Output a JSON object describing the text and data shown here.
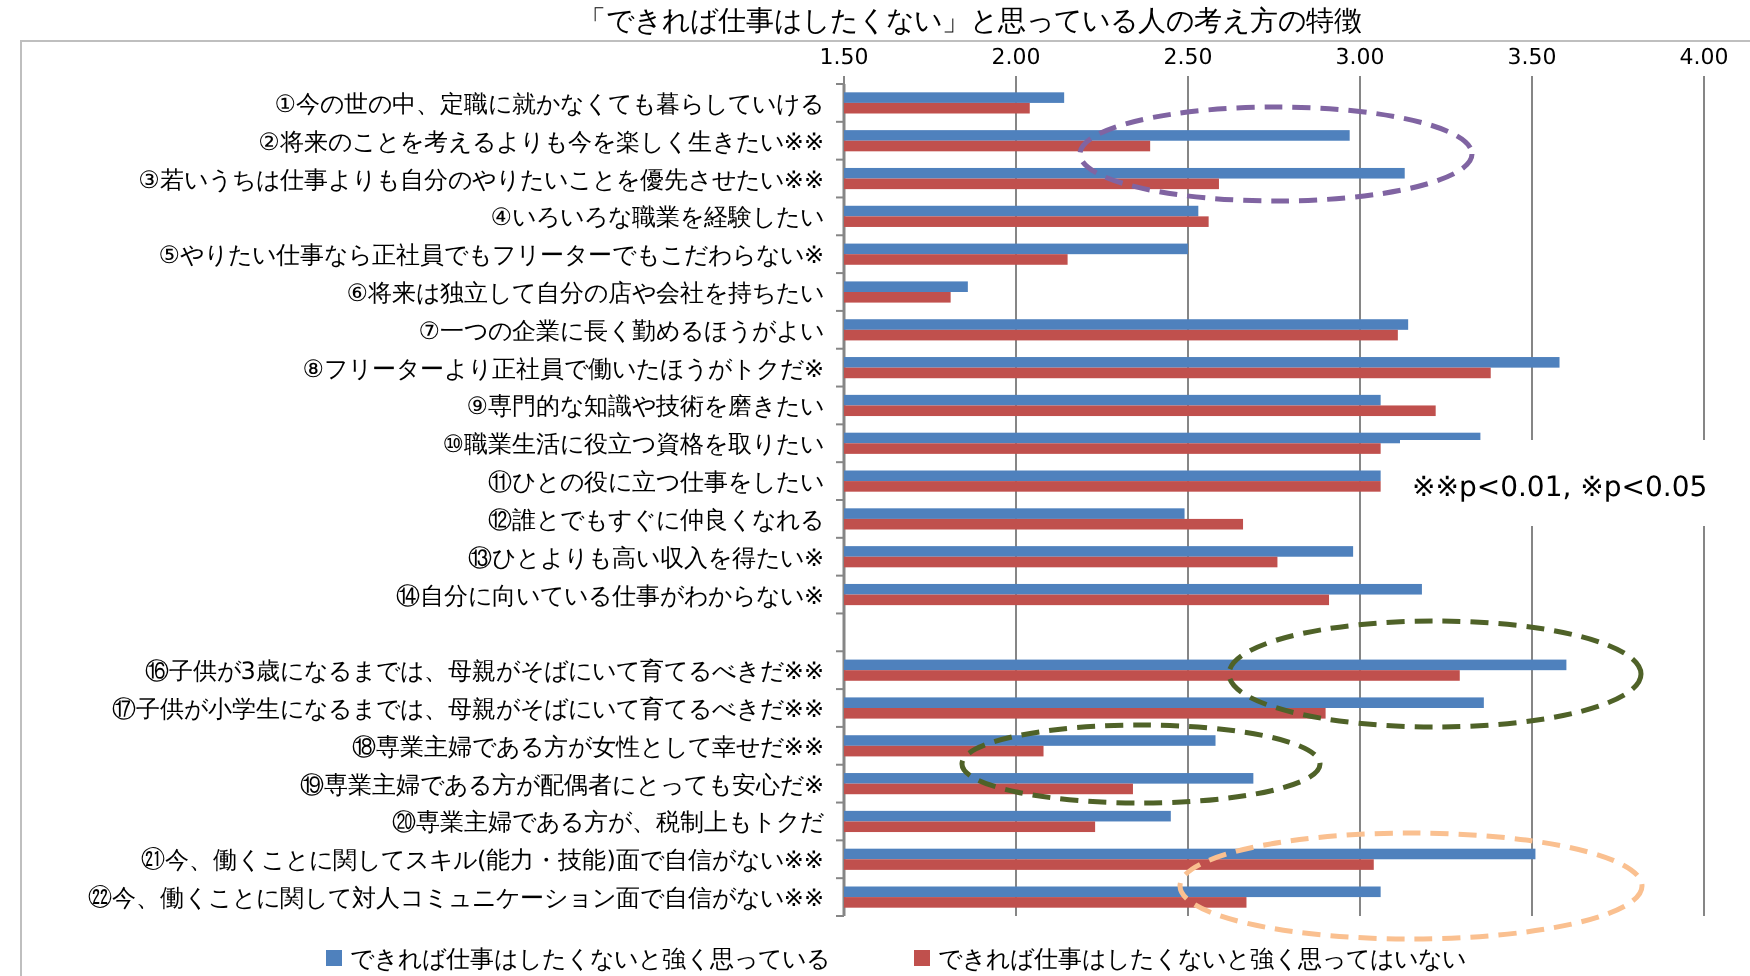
{
  "chart_data": {
    "type": "bar",
    "orientation": "horizontal",
    "title": "「できれば仕事はしたくない」と思っている人の考え方の特徴",
    "categories": [
      "①今の世の中、定職に就かなくても暮らしていける",
      "②将来のことを考えるよりも今を楽しく生きたい※※",
      "③若いうちは仕事よりも自分のやりたいことを優先させたい※※",
      "④いろいろな職業を経験したい",
      "⑤やりたい仕事なら正社員でもフリーターでもこだわらない※",
      "⑥将来は独立して自分の店や会社を持ちたい",
      "⑦一つの企業に長く勤めるほうがよい",
      "⑧フリーターより正社員で働いたほうがトクだ※",
      "⑨専門的な知識や技術を磨きたい",
      "⑩職業生活に役立つ資格を取りたい",
      "⑪ひとの役に立つ仕事をしたい",
      "⑫誰とでもすぐに仲良くなれる",
      "⑬ひとよりも高い収入を得たい※",
      "⑭自分に向いている仕事がわからない※",
      null,
      "⑯子供が3歳になるまでは、母親がそばにいて育てるべきだ※※",
      "⑰子供が小学生になるまでは、母親がそばにいて育てるべきだ※※",
      "⑱専業主婦である方が女性として幸せだ※※",
      "⑲専業主婦である方が配偶者にとっても安心だ※",
      "⑳専業主婦である方が、税制上もトクだ",
      "㉑今、働くことに関してスキル(能力・技能)面で自信がない※※",
      "㉒今、働くことに関して対人コミュニケーション面で自信がない※※"
    ],
    "series": [
      {
        "name": "できれば仕事はしたくないと強く思っている",
        "color": "#4f81bd",
        "values": [
          2.14,
          2.97,
          3.13,
          2.53,
          2.5,
          1.86,
          3.14,
          3.58,
          3.06,
          3.35,
          3.06,
          2.49,
          2.98,
          3.18,
          null,
          3.6,
          3.36,
          2.58,
          2.69,
          2.45,
          3.51,
          3.06
        ]
      },
      {
        "name": "できれば仕事はしたくないと強く思ってはいない",
        "color": "#c0504d",
        "values": [
          2.04,
          2.39,
          2.59,
          2.56,
          2.15,
          1.81,
          3.11,
          3.38,
          3.22,
          3.06,
          3.06,
          2.66,
          2.76,
          2.91,
          null,
          3.29,
          2.9,
          2.08,
          2.34,
          2.23,
          3.04,
          2.67
        ]
      }
    ],
    "xlim": [
      1.5,
      4
    ],
    "xticks": [
      {
        "value": 1.5,
        "label": "1.50"
      },
      {
        "value": 2,
        "label": "2.00"
      },
      {
        "value": 2.5,
        "label": "2.50"
      },
      {
        "value": 3,
        "label": "3.00"
      },
      {
        "value": 3.5,
        "label": "3.50"
      },
      {
        "value": 4,
        "label": "4.00"
      }
    ],
    "grid": "x",
    "legend": "bottom",
    "annotations": [
      "※※p<0.01, ※p<0.05"
    ]
  }
}
